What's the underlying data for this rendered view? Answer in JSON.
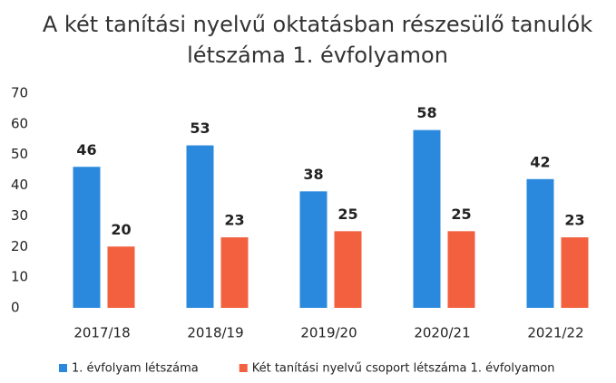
{
  "chart_data": {
    "type": "bar",
    "title": "A két tanítási nyelvű oktatásban részesülő tanulók létszáma 1. évfolyamon",
    "categories": [
      "2017/18",
      "2018/19",
      "2019/20",
      "2020/21",
      "2021/22"
    ],
    "series": [
      {
        "name": "1. évfolyam létszáma",
        "color": "#2a89dd",
        "values": [
          46,
          53,
          38,
          58,
          42
        ]
      },
      {
        "name": "Két tanítási nyelvű csoport létszáma 1. évfolyamon",
        "color": "#f2603f",
        "values": [
          20,
          23,
          25,
          25,
          23
        ]
      }
    ],
    "ylim": [
      0,
      70
    ],
    "yticks": [
      0,
      10,
      20,
      30,
      40,
      50,
      60,
      70
    ],
    "grid": false,
    "legend": "bottom"
  }
}
